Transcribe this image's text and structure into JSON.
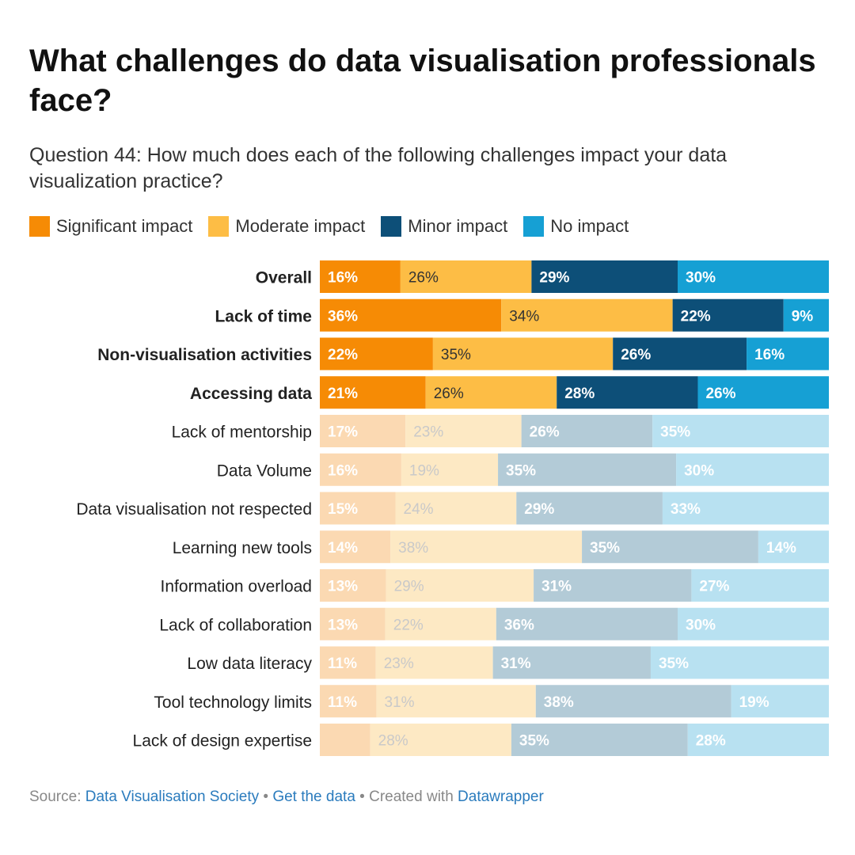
{
  "title": "What challenges do data visualisation professionals face?",
  "subtitle": "Question 44: How much does each of the following challenges impact your data visualization practice?",
  "legend": [
    {
      "label": "Significant impact",
      "color": "#f68b05"
    },
    {
      "label": "Moderate impact",
      "color": "#fdbd45"
    },
    {
      "label": "Minor impact",
      "color": "#0d4f78"
    },
    {
      "label": "No impact",
      "color": "#16a0d4"
    }
  ],
  "chart_data": {
    "type": "bar",
    "orientation": "horizontal",
    "stacked": true,
    "normalized_percent": true,
    "categories": [
      "Overall",
      "Lack of time",
      "Non-visualisation activities",
      "Accessing data",
      "Lack of mentorship",
      "Data Volume",
      "Data visualisation not respected",
      "Learning new tools",
      "Information overload",
      "Lack of collaboration",
      "Low data literacy",
      "Tool technology limits",
      "Lack of design expertise"
    ],
    "highlighted": [
      true,
      true,
      true,
      true,
      false,
      false,
      false,
      false,
      false,
      false,
      false,
      false,
      false
    ],
    "series": [
      {
        "name": "Significant impact",
        "color": "#f68b05",
        "faded_color": "#fbd9b2",
        "values": [
          16,
          36,
          22,
          21,
          17,
          16,
          15,
          14,
          13,
          13,
          11,
          11,
          10
        ],
        "labels": [
          "16%",
          "36%",
          "22%",
          "21%",
          "17%",
          "16%",
          "15%",
          "14%",
          "13%",
          "13%",
          "11%",
          "11%",
          ""
        ]
      },
      {
        "name": "Moderate impact",
        "color": "#fdbd45",
        "faded_color": "#fde9c4",
        "values": [
          26,
          34,
          35,
          26,
          23,
          19,
          24,
          38,
          29,
          22,
          23,
          31,
          28
        ],
        "labels": [
          "26%",
          "34%",
          "35%",
          "26%",
          "23%",
          "19%",
          "24%",
          "38%",
          "29%",
          "22%",
          "23%",
          "31%",
          "28%"
        ]
      },
      {
        "name": "Minor impact",
        "color": "#0d4f78",
        "faded_color": "#b3cbd7",
        "values": [
          29,
          22,
          26,
          28,
          26,
          35,
          29,
          35,
          31,
          36,
          31,
          38,
          35
        ],
        "labels": [
          "29%",
          "22%",
          "26%",
          "28%",
          "26%",
          "35%",
          "29%",
          "35%",
          "31%",
          "36%",
          "31%",
          "38%",
          "35%"
        ]
      },
      {
        "name": "No impact",
        "color": "#16a0d4",
        "faded_color": "#b8e1f1",
        "values": [
          30,
          9,
          16,
          26,
          35,
          30,
          33,
          14,
          27,
          30,
          35,
          19,
          28
        ],
        "labels": [
          "30%",
          "9%",
          "16%",
          "26%",
          "35%",
          "30%",
          "33%",
          "14%",
          "27%",
          "30%",
          "35%",
          "19%",
          "28%"
        ]
      }
    ]
  },
  "footer": {
    "source_prefix": "Source: ",
    "source_link": "Data Visualisation Society",
    "separator1": " • ",
    "data_link": "Get the data",
    "separator2": " • Created with ",
    "tool_link": "Datawrapper"
  }
}
